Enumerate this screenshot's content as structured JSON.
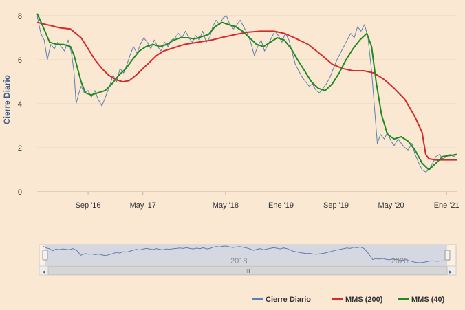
{
  "chart_data": {
    "type": "line",
    "ylabel": "Cierre Diario",
    "ylim": [
      0,
      8
    ],
    "yticks": [
      0,
      2,
      4,
      6,
      8
    ],
    "x_ticks": [
      {
        "label": "Sep '16",
        "date": "2016-09-01"
      },
      {
        "label": "May '17",
        "date": "2017-05-01"
      },
      {
        "label": "May '18",
        "date": "2018-05-01"
      },
      {
        "label": "Ene '19",
        "date": "2019-01-01"
      },
      {
        "label": "Sep '19",
        "date": "2019-09-01"
      },
      {
        "label": "May '20",
        "date": "2020-05-01"
      },
      {
        "label": "Ene '21",
        "date": "2021-01-01"
      }
    ],
    "xlim": [
      "2016-01-20",
      "2021-02-15"
    ],
    "grid": true,
    "legend_position": "bottom-right",
    "series": [
      {
        "name": "Cierre Diario",
        "color": "#5b7fb3",
        "points": [
          [
            "2016-01-20",
            8.0
          ],
          [
            "2016-02-05",
            7.2
          ],
          [
            "2016-02-20",
            6.9
          ],
          [
            "2016-03-05",
            6.0
          ],
          [
            "2016-03-20",
            6.7
          ],
          [
            "2016-04-05",
            6.5
          ],
          [
            "2016-04-20",
            6.8
          ],
          [
            "2016-05-05",
            6.6
          ],
          [
            "2016-05-20",
            6.4
          ],
          [
            "2016-06-05",
            6.9
          ],
          [
            "2016-06-20",
            6.3
          ],
          [
            "2016-07-01",
            5.4
          ],
          [
            "2016-07-10",
            4.0
          ],
          [
            "2016-07-20",
            4.4
          ],
          [
            "2016-08-01",
            4.8
          ],
          [
            "2016-08-15",
            4.5
          ],
          [
            "2016-09-01",
            4.6
          ],
          [
            "2016-09-15",
            4.3
          ],
          [
            "2016-10-01",
            4.6
          ],
          [
            "2016-10-15",
            4.2
          ],
          [
            "2016-11-01",
            3.9
          ],
          [
            "2016-11-20",
            4.4
          ],
          [
            "2016-12-05",
            4.8
          ],
          [
            "2016-12-20",
            5.3
          ],
          [
            "2017-01-05",
            5.0
          ],
          [
            "2017-01-20",
            5.6
          ],
          [
            "2017-02-05",
            5.4
          ],
          [
            "2017-02-20",
            5.8
          ],
          [
            "2017-03-05",
            6.2
          ],
          [
            "2017-03-20",
            6.6
          ],
          [
            "2017-04-05",
            6.3
          ],
          [
            "2017-04-20",
            6.7
          ],
          [
            "2017-05-05",
            7.0
          ],
          [
            "2017-05-20",
            6.8
          ],
          [
            "2017-06-05",
            6.5
          ],
          [
            "2017-06-20",
            6.9
          ],
          [
            "2017-07-05",
            6.6
          ],
          [
            "2017-07-20",
            6.4
          ],
          [
            "2017-08-05",
            6.8
          ],
          [
            "2017-08-20",
            6.6
          ],
          [
            "2017-09-05",
            6.9
          ],
          [
            "2017-09-20",
            7.0
          ],
          [
            "2017-10-05",
            7.2
          ],
          [
            "2017-10-20",
            7.0
          ],
          [
            "2017-11-05",
            7.3
          ],
          [
            "2017-11-20",
            7.0
          ],
          [
            "2017-12-05",
            6.8
          ],
          [
            "2017-12-20",
            7.1
          ],
          [
            "2018-01-05",
            6.9
          ],
          [
            "2018-01-20",
            7.3
          ],
          [
            "2018-02-05",
            6.8
          ],
          [
            "2018-02-20",
            7.0
          ],
          [
            "2018-03-05",
            7.5
          ],
          [
            "2018-03-20",
            7.8
          ],
          [
            "2018-04-05",
            7.6
          ],
          [
            "2018-04-20",
            7.9
          ],
          [
            "2018-05-05",
            8.0
          ],
          [
            "2018-05-20",
            7.6
          ],
          [
            "2018-06-05",
            7.4
          ],
          [
            "2018-06-20",
            7.6
          ],
          [
            "2018-07-05",
            7.8
          ],
          [
            "2018-07-20",
            7.5
          ],
          [
            "2018-08-05",
            7.2
          ],
          [
            "2018-08-20",
            6.8
          ],
          [
            "2018-09-05",
            6.2
          ],
          [
            "2018-09-20",
            6.6
          ],
          [
            "2018-10-05",
            6.9
          ],
          [
            "2018-10-20",
            6.4
          ],
          [
            "2018-11-05",
            6.7
          ],
          [
            "2018-11-20",
            7.0
          ],
          [
            "2018-12-05",
            7.3
          ],
          [
            "2018-12-20",
            7.1
          ],
          [
            "2019-01-05",
            6.8
          ],
          [
            "2019-01-20",
            7.2
          ],
          [
            "2019-02-05",
            6.9
          ],
          [
            "2019-02-20",
            6.3
          ],
          [
            "2019-03-05",
            5.8
          ],
          [
            "2019-03-20",
            5.5
          ],
          [
            "2019-04-05",
            5.2
          ],
          [
            "2019-04-20",
            5.0
          ],
          [
            "2019-05-05",
            4.8
          ],
          [
            "2019-05-20",
            4.9
          ],
          [
            "2019-06-05",
            4.6
          ],
          [
            "2019-06-20",
            4.5
          ],
          [
            "2019-07-05",
            4.7
          ],
          [
            "2019-07-20",
            4.9
          ],
          [
            "2019-08-05",
            5.2
          ],
          [
            "2019-08-20",
            5.6
          ],
          [
            "2019-09-05",
            6.0
          ],
          [
            "2019-09-20",
            6.3
          ],
          [
            "2019-10-05",
            6.6
          ],
          [
            "2019-10-20",
            6.9
          ],
          [
            "2019-11-05",
            7.2
          ],
          [
            "2019-11-20",
            7.0
          ],
          [
            "2019-12-05",
            7.5
          ],
          [
            "2019-12-20",
            7.3
          ],
          [
            "2020-01-05",
            7.6
          ],
          [
            "2020-01-20",
            7.0
          ],
          [
            "2020-02-05",
            5.5
          ],
          [
            "2020-02-20",
            3.5
          ],
          [
            "2020-03-01",
            2.2
          ],
          [
            "2020-03-15",
            2.6
          ],
          [
            "2020-04-01",
            2.4
          ],
          [
            "2020-04-15",
            2.7
          ],
          [
            "2020-05-01",
            2.3
          ],
          [
            "2020-05-15",
            2.1
          ],
          [
            "2020-06-01",
            2.4
          ],
          [
            "2020-06-15",
            2.2
          ],
          [
            "2020-07-01",
            2.0
          ],
          [
            "2020-07-15",
            1.9
          ],
          [
            "2020-08-01",
            2.2
          ],
          [
            "2020-08-15",
            1.7
          ],
          [
            "2020-09-01",
            1.3
          ],
          [
            "2020-09-15",
            1.0
          ],
          [
            "2020-10-01",
            0.9
          ],
          [
            "2020-10-15",
            1.0
          ],
          [
            "2020-11-01",
            1.3
          ],
          [
            "2020-11-15",
            1.6
          ],
          [
            "2020-12-01",
            1.7
          ],
          [
            "2020-12-15",
            1.5
          ],
          [
            "2021-01-01",
            1.6
          ],
          [
            "2021-01-15",
            1.7
          ],
          [
            "2021-02-01",
            1.6
          ],
          [
            "2021-02-15",
            1.7
          ]
        ]
      },
      {
        "name": "MMS (200)",
        "color": "#d42a2a",
        "points": [
          [
            "2016-01-20",
            7.7
          ],
          [
            "2016-03-01",
            7.6
          ],
          [
            "2016-05-01",
            7.45
          ],
          [
            "2016-06-15",
            7.4
          ],
          [
            "2016-08-01",
            7.0
          ],
          [
            "2016-09-01",
            6.5
          ],
          [
            "2016-10-01",
            6.0
          ],
          [
            "2016-11-01",
            5.6
          ],
          [
            "2016-12-01",
            5.3
          ],
          [
            "2017-01-01",
            5.1
          ],
          [
            "2017-02-01",
            5.0
          ],
          [
            "2017-03-01",
            5.05
          ],
          [
            "2017-04-01",
            5.3
          ],
          [
            "2017-05-01",
            5.6
          ],
          [
            "2017-06-01",
            5.9
          ],
          [
            "2017-07-01",
            6.2
          ],
          [
            "2017-08-01",
            6.4
          ],
          [
            "2017-09-01",
            6.5
          ],
          [
            "2017-10-01",
            6.6
          ],
          [
            "2017-11-01",
            6.7
          ],
          [
            "2017-12-01",
            6.75
          ],
          [
            "2018-01-01",
            6.8
          ],
          [
            "2018-03-01",
            6.9
          ],
          [
            "2018-05-01",
            7.05
          ],
          [
            "2018-06-15",
            7.15
          ],
          [
            "2018-08-01",
            7.25
          ],
          [
            "2018-10-01",
            7.3
          ],
          [
            "2018-12-01",
            7.3
          ],
          [
            "2019-01-15",
            7.2
          ],
          [
            "2019-03-01",
            7.0
          ],
          [
            "2019-05-01",
            6.7
          ],
          [
            "2019-07-01",
            6.2
          ],
          [
            "2019-08-15",
            5.8
          ],
          [
            "2019-10-01",
            5.6
          ],
          [
            "2019-11-15",
            5.5
          ],
          [
            "2020-01-01",
            5.5
          ],
          [
            "2020-02-15",
            5.4
          ],
          [
            "2020-04-01",
            5.1
          ],
          [
            "2020-05-15",
            4.7
          ],
          [
            "2020-07-01",
            4.2
          ],
          [
            "2020-08-15",
            3.4
          ],
          [
            "2020-09-15",
            2.7
          ],
          [
            "2020-10-01",
            1.7
          ],
          [
            "2020-10-15",
            1.5
          ],
          [
            "2020-11-15",
            1.45
          ],
          [
            "2021-02-15",
            1.45
          ]
        ]
      },
      {
        "name": "MMS (40)",
        "color": "#1f8a1f",
        "points": [
          [
            "2016-01-20",
            8.1
          ],
          [
            "2016-02-15",
            7.5
          ],
          [
            "2016-03-15",
            6.8
          ],
          [
            "2016-04-15",
            6.7
          ],
          [
            "2016-05-15",
            6.7
          ],
          [
            "2016-06-15",
            6.6
          ],
          [
            "2016-07-01",
            6.2
          ],
          [
            "2016-08-01",
            5.0
          ],
          [
            "2016-08-20",
            4.5
          ],
          [
            "2016-09-15",
            4.4
          ],
          [
            "2016-10-15",
            4.5
          ],
          [
            "2016-11-15",
            4.6
          ],
          [
            "2016-12-15",
            4.9
          ],
          [
            "2017-01-15",
            5.3
          ],
          [
            "2017-02-15",
            5.6
          ],
          [
            "2017-03-15",
            6.0
          ],
          [
            "2017-04-15",
            6.4
          ],
          [
            "2017-05-15",
            6.6
          ],
          [
            "2017-06-15",
            6.7
          ],
          [
            "2017-07-15",
            6.6
          ],
          [
            "2017-08-15",
            6.7
          ],
          [
            "2017-09-15",
            6.9
          ],
          [
            "2017-10-15",
            7.0
          ],
          [
            "2017-11-15",
            7.0
          ],
          [
            "2017-12-15",
            6.95
          ],
          [
            "2018-01-15",
            7.05
          ],
          [
            "2018-02-15",
            7.15
          ],
          [
            "2018-03-15",
            7.5
          ],
          [
            "2018-04-15",
            7.7
          ],
          [
            "2018-05-15",
            7.6
          ],
          [
            "2018-06-15",
            7.5
          ],
          [
            "2018-07-15",
            7.3
          ],
          [
            "2018-08-15",
            7.0
          ],
          [
            "2018-09-15",
            6.7
          ],
          [
            "2018-10-15",
            6.6
          ],
          [
            "2018-11-15",
            6.8
          ],
          [
            "2018-12-15",
            7.0
          ],
          [
            "2019-01-15",
            6.9
          ],
          [
            "2019-02-15",
            6.5
          ],
          [
            "2019-03-15",
            6.0
          ],
          [
            "2019-04-15",
            5.5
          ],
          [
            "2019-05-15",
            5.0
          ],
          [
            "2019-06-15",
            4.7
          ],
          [
            "2019-07-15",
            4.6
          ],
          [
            "2019-08-15",
            4.9
          ],
          [
            "2019-09-15",
            5.4
          ],
          [
            "2019-10-15",
            6.0
          ],
          [
            "2019-11-15",
            6.5
          ],
          [
            "2019-12-15",
            6.9
          ],
          [
            "2020-01-15",
            7.2
          ],
          [
            "2020-02-05",
            6.6
          ],
          [
            "2020-02-25",
            5.0
          ],
          [
            "2020-03-20",
            3.5
          ],
          [
            "2020-04-15",
            2.6
          ],
          [
            "2020-05-15",
            2.4
          ],
          [
            "2020-06-15",
            2.5
          ],
          [
            "2020-07-15",
            2.3
          ],
          [
            "2020-08-15",
            1.9
          ],
          [
            "2020-09-15",
            1.3
          ],
          [
            "2020-10-15",
            1.0
          ],
          [
            "2020-11-15",
            1.3
          ],
          [
            "2020-12-15",
            1.6
          ],
          [
            "2021-01-15",
            1.65
          ],
          [
            "2021-02-15",
            1.7
          ]
        ]
      }
    ]
  },
  "navigator": {
    "year_labels": [
      "2018",
      "2020"
    ],
    "year_dates": [
      "2018-07-01",
      "2020-07-01"
    ],
    "handle_glyph": "III",
    "left_arrow": "◂",
    "right_arrow": "▸"
  }
}
